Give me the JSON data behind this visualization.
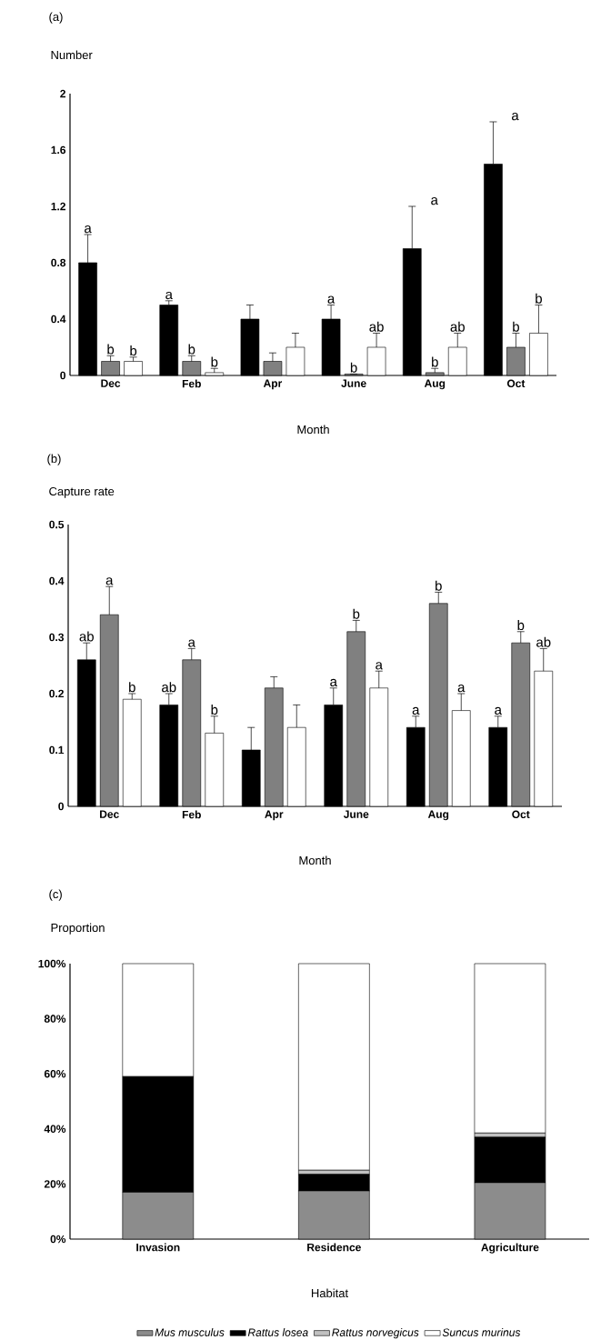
{
  "chart_data": [
    {
      "type": "bar",
      "title": "(a)",
      "ylabel": "Number",
      "xlabel": "Month",
      "annotations": [
        "a",
        "a"
      ],
      "categories": [
        "Dec",
        "Feb",
        "Apr",
        "June",
        "Aug",
        "Oct"
      ],
      "ylim": [
        0,
        2
      ],
      "yticks": [
        0,
        0.4,
        0.8,
        1.2,
        1.6,
        2
      ],
      "grid": false,
      "legend": false,
      "series": [
        {
          "color": "#000000",
          "values": [
            0.8,
            0.5,
            0.4,
            0.4,
            0.9,
            1.5
          ],
          "errors": [
            [
              0.8,
              1.0
            ],
            [
              0.5,
              0.53
            ],
            [
              0.4,
              0.5
            ],
            [
              0.4,
              0.5
            ],
            [
              0.9,
              1.2
            ],
            [
              1.5,
              1.8
            ]
          ],
          "value_labels": [
            "a",
            "a",
            null,
            "a",
            null,
            null
          ]
        },
        {
          "color": "#808080",
          "values": [
            0.1,
            0.1,
            0.1,
            0.01,
            0.02,
            0.2
          ],
          "errors": [
            [
              0.1,
              0.14
            ],
            [
              0.1,
              0.14
            ],
            [
              0.1,
              0.16
            ],
            [
              0.01,
              0.01
            ],
            [
              0.02,
              0.05
            ],
            [
              0.2,
              0.3
            ]
          ],
          "value_labels": [
            "b",
            "b",
            null,
            "b",
            "b",
            "b"
          ]
        },
        {
          "color": "#ffffff",
          "values": [
            0.1,
            0.02,
            0.2,
            0.2,
            0.2,
            0.3
          ],
          "errors": [
            [
              0.1,
              0.13
            ],
            [
              0.02,
              0.05
            ],
            [
              0.2,
              0.3
            ],
            [
              0.2,
              0.3
            ],
            [
              0.2,
              0.3
            ],
            [
              0.3,
              0.5
            ]
          ],
          "value_labels": [
            "b",
            "b",
            null,
            "ab",
            "ab",
            "b"
          ]
        }
      ]
    },
    {
      "type": "bar",
      "title": "(b)",
      "ylabel": "Capture rate",
      "xlabel": "Month",
      "categories": [
        "Dec",
        "Feb",
        "Apr",
        "June",
        "Aug",
        "Oct"
      ],
      "ylim": [
        0,
        0.5
      ],
      "yticks": [
        0,
        0.1,
        0.2,
        0.3,
        0.4,
        0.5
      ],
      "grid": false,
      "legend": false,
      "series": [
        {
          "color": "#000000",
          "values": [
            0.26,
            0.18,
            0.1,
            0.18,
            0.14,
            0.14
          ],
          "errors": [
            [
              0.26,
              0.29
            ],
            [
              0.18,
              0.2
            ],
            [
              0.1,
              0.14
            ],
            [
              0.18,
              0.21
            ],
            [
              0.14,
              0.16
            ],
            [
              0.14,
              0.16
            ]
          ],
          "value_labels": [
            "ab",
            "ab",
            null,
            "a",
            "a",
            "a"
          ]
        },
        {
          "color": "#808080",
          "values": [
            0.34,
            0.26,
            0.21,
            0.31,
            0.36,
            0.29
          ],
          "errors": [
            [
              0.34,
              0.39
            ],
            [
              0.26,
              0.28
            ],
            [
              0.21,
              0.23
            ],
            [
              0.31,
              0.33
            ],
            [
              0.36,
              0.38
            ],
            [
              0.29,
              0.31
            ]
          ],
          "value_labels": [
            "a",
            "a",
            null,
            "b",
            "b",
            "b"
          ]
        },
        {
          "color": "#ffffff",
          "values": [
            0.19,
            0.13,
            0.14,
            0.21,
            0.17,
            0.24
          ],
          "errors": [
            [
              0.19,
              0.2
            ],
            [
              0.13,
              0.16
            ],
            [
              0.14,
              0.18
            ],
            [
              0.21,
              0.24
            ],
            [
              0.17,
              0.2
            ],
            [
              0.24,
              0.28
            ]
          ],
          "value_labels": [
            "b",
            "b",
            null,
            "a",
            "a",
            "ab"
          ]
        }
      ]
    },
    {
      "type": "bar",
      "title": "(c)",
      "ylabel": "Proportion",
      "xlabel": "Habitat",
      "categories": [
        "Invasion",
        "Residence",
        "Agriculture"
      ],
      "stacked": true,
      "ylim": [
        0,
        100
      ],
      "yticks": [
        {
          "value": 0,
          "label": "0%"
        },
        {
          "value": 20,
          "label": "20%"
        },
        {
          "value": 40,
          "label": "40%"
        },
        {
          "value": 60,
          "label": "60%"
        },
        {
          "value": 80,
          "label": "80%"
        },
        {
          "value": 100,
          "label": "100%"
        }
      ],
      "grid": false,
      "legend": "bottom",
      "series": [
        {
          "name": "Mus musculus",
          "color": "#8c8c8c",
          "values": [
            17,
            17.5,
            20.5
          ]
        },
        {
          "name": "Rattus losea",
          "color": "#000000",
          "values": [
            42,
            6,
            16.5
          ]
        },
        {
          "name": "Rattus norvegicus",
          "color": "#c0c0c0",
          "values": [
            0,
            1.5,
            1.5
          ]
        },
        {
          "name": "Suncus murinus",
          "color": "#ffffff",
          "values": [
            41,
            75,
            61.5
          ]
        }
      ]
    }
  ]
}
